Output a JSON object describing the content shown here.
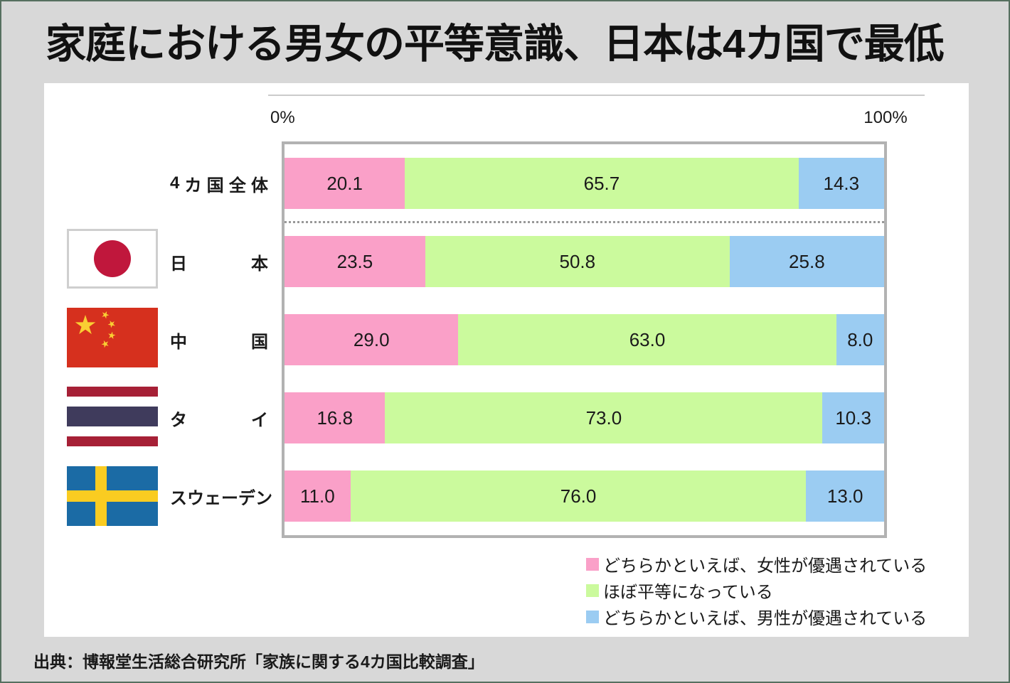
{
  "page": {
    "title": "家庭における男女の平等意識、日本は4カ国で最低",
    "source": "出典：博報堂生活総合研究所「家族に関する4カ国比較調査」"
  },
  "axis": {
    "left_label": "0%",
    "right_label": "100%"
  },
  "legend": {
    "items": [
      {
        "label": "どちらかといえば、女性が優遇されている",
        "color": "#FAA0C8"
      },
      {
        "label": "ほぼ平等になっている",
        "color": "#CBFA9D"
      },
      {
        "label": "どちらかといえば、男性が優遇されている",
        "color": "#9BCCF2"
      }
    ]
  },
  "rows": [
    {
      "label": "4カ国全体",
      "flag": "none",
      "segments": [
        {
          "value": 20.1,
          "text": "20.1"
        },
        {
          "value": 65.7,
          "text": "65.7"
        },
        {
          "value": 14.3,
          "text": "14.3"
        }
      ]
    },
    {
      "label": "日本",
      "flag": "japan",
      "segments": [
        {
          "value": 23.5,
          "text": "23.5"
        },
        {
          "value": 50.8,
          "text": "50.8"
        },
        {
          "value": 25.8,
          "text": "25.8"
        }
      ]
    },
    {
      "label": "中国",
      "flag": "china",
      "segments": [
        {
          "value": 29.0,
          "text": "29.0"
        },
        {
          "value": 63.0,
          "text": "63.0"
        },
        {
          "value": 8.0,
          "text": "8.0"
        }
      ]
    },
    {
      "label": "タイ",
      "flag": "thailand",
      "segments": [
        {
          "value": 16.8,
          "text": "16.8"
        },
        {
          "value": 73.0,
          "text": "73.0"
        },
        {
          "value": 10.3,
          "text": "10.3"
        }
      ]
    },
    {
      "label": "スウェーデン",
      "flag": "sweden",
      "segments": [
        {
          "value": 11.0,
          "text": "11.0"
        },
        {
          "value": 76.0,
          "text": "76.0"
        },
        {
          "value": 13.0,
          "text": "13.0"
        }
      ]
    }
  ],
  "chart_data": {
    "type": "bar",
    "orientation": "horizontal",
    "stacked": true,
    "title": "家庭における男女の平等意識、日本は4カ国で最低",
    "categories": [
      "4カ国全体",
      "日本",
      "中国",
      "タイ",
      "スウェーデン"
    ],
    "series": [
      {
        "name": "どちらかといえば、女性が優遇されている",
        "color": "#FAA0C8",
        "values": [
          20.1,
          23.5,
          29.0,
          16.8,
          11.0
        ]
      },
      {
        "name": "ほぼ平等になっている",
        "color": "#CBFA9D",
        "values": [
          65.7,
          50.8,
          63.0,
          73.0,
          76.0
        ]
      },
      {
        "name": "どちらかといえば、男性が優遇されている",
        "color": "#9BCCF2",
        "values": [
          14.3,
          25.8,
          8.0,
          10.3,
          13.0
        ]
      }
    ],
    "xlim": [
      0,
      100
    ],
    "x_tick_labels": [
      "0%",
      "100%"
    ],
    "value_labels": true,
    "grid": false,
    "legend_position": "bottom-right",
    "separator_after_category": "4カ国全体",
    "source": "出典：博報堂生活総合研究所「家族に関する4カ国比較調査」"
  }
}
